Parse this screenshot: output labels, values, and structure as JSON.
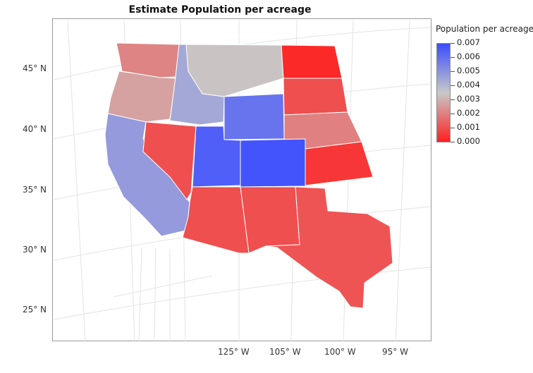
{
  "chart_data": {
    "type": "choropleth",
    "title": "Estimate Population per acreage",
    "legend": {
      "title": "Population per acreage",
      "placement": "right",
      "ticks": [
        "0.007",
        "0.006",
        "0.005",
        "0.004",
        "0.003",
        "0.002",
        "0.001",
        "0.000"
      ],
      "range": [
        0.0,
        0.007
      ],
      "color_low": "#ff1f1f",
      "color_mid": "#c8c8c8",
      "color_high": "#3b4dff"
    },
    "lat_labels": [
      "45° N",
      "40° N",
      "35° N",
      "30° N",
      "25° N"
    ],
    "lon_labels": [
      "125° W",
      "105° W",
      "100° W",
      "95° W"
    ],
    "states": [
      {
        "name": "Washington",
        "value": 0.0021
      },
      {
        "name": "Oregon",
        "value": 0.0027
      },
      {
        "name": "Idaho",
        "value": 0.0044
      },
      {
        "name": "Montana",
        "value": 0.0034
      },
      {
        "name": "North Dakota",
        "value": 0.0002
      },
      {
        "name": "South Dakota",
        "value": 0.001
      },
      {
        "name": "Wyoming",
        "value": 0.0059
      },
      {
        "name": "Nebraska",
        "value": 0.002
      },
      {
        "name": "California",
        "value": 0.0048
      },
      {
        "name": "Nevada",
        "value": 0.001
      },
      {
        "name": "Utah",
        "value": 0.0065
      },
      {
        "name": "Colorado",
        "value": 0.0068
      },
      {
        "name": "Kansas",
        "value": 0.0005
      },
      {
        "name": "Arizona",
        "value": 0.001
      },
      {
        "name": "New Mexico",
        "value": 0.001
      },
      {
        "name": "Texas",
        "value": 0.0011
      }
    ]
  }
}
